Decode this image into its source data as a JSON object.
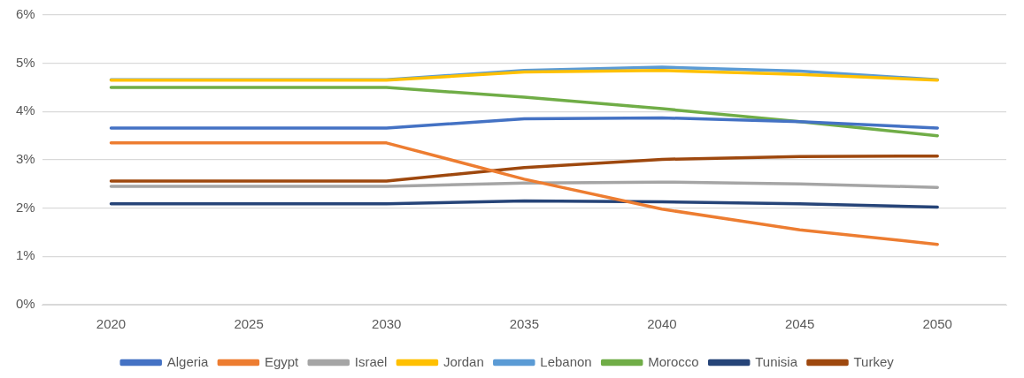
{
  "chart_data": {
    "type": "line",
    "categories": [
      "2020",
      "2025",
      "2030",
      "2035",
      "2040",
      "2045",
      "2050"
    ],
    "series": [
      {
        "name": "Algeria",
        "color": "#4472c4",
        "values": [
          3.66,
          3.66,
          3.66,
          3.85,
          3.87,
          3.79,
          3.66
        ]
      },
      {
        "name": "Egypt",
        "color": "#ed7d31",
        "values": [
          3.35,
          3.35,
          3.35,
          2.6,
          1.98,
          1.55,
          1.25
        ]
      },
      {
        "name": "Israel",
        "color": "#a5a5a5",
        "values": [
          2.45,
          2.45,
          2.45,
          2.52,
          2.54,
          2.5,
          2.43
        ]
      },
      {
        "name": "Jordan",
        "color": "#ffc000",
        "values": [
          4.65,
          4.65,
          4.65,
          4.82,
          4.85,
          4.77,
          4.65
        ]
      },
      {
        "name": "Lebanon",
        "color": "#5b9bd5",
        "values": [
          4.66,
          4.66,
          4.66,
          4.85,
          4.92,
          4.84,
          4.66
        ]
      },
      {
        "name": "Morocco",
        "color": "#70ad47",
        "values": [
          4.5,
          4.5,
          4.5,
          4.3,
          4.06,
          3.79,
          3.5
        ]
      },
      {
        "name": "Tunisia",
        "color": "#264478",
        "values": [
          2.09,
          2.09,
          2.09,
          2.15,
          2.13,
          2.09,
          2.02
        ]
      },
      {
        "name": "Turkey",
        "color": "#9e480e",
        "values": [
          2.56,
          2.56,
          2.56,
          2.84,
          3.01,
          3.07,
          3.08
        ]
      }
    ],
    "ylim": [
      0,
      6
    ],
    "yticks": [
      {
        "value": 0,
        "label": "0%"
      },
      {
        "value": 1,
        "label": "1%"
      },
      {
        "value": 2,
        "label": "2%"
      },
      {
        "value": 3,
        "label": "3%"
      },
      {
        "value": 4,
        "label": "4%"
      },
      {
        "value": 5,
        "label": "5%"
      },
      {
        "value": 6,
        "label": "6%"
      }
    ],
    "grid": "y",
    "legend": "bottom",
    "marker": "none",
    "line_style": "solid"
  }
}
